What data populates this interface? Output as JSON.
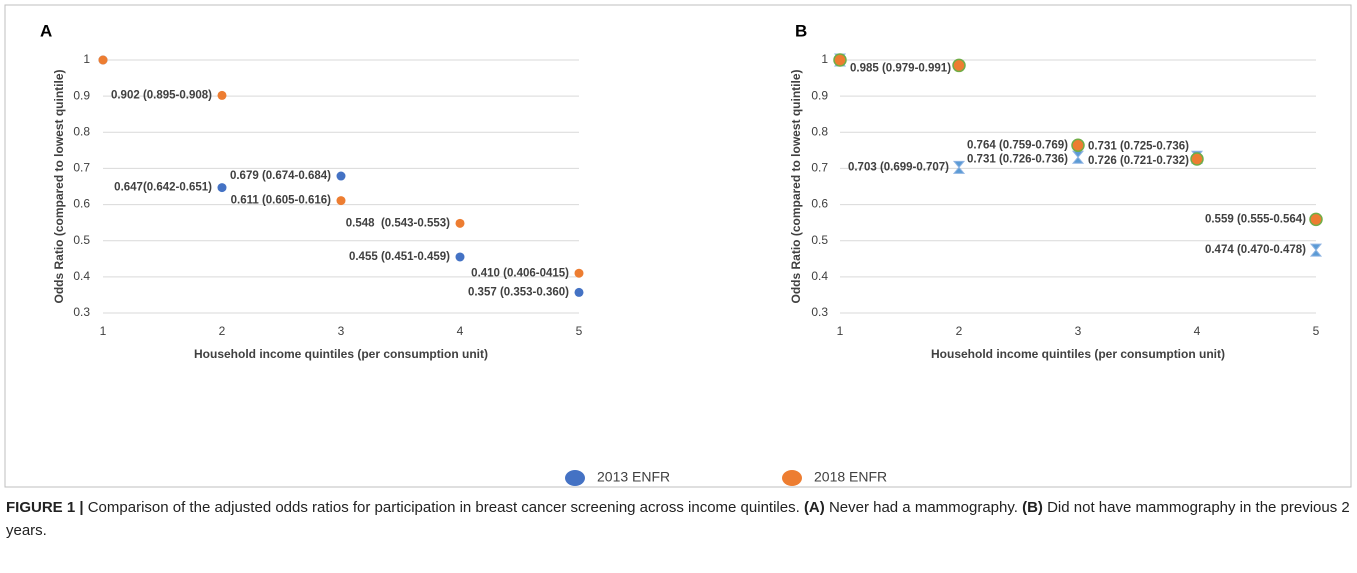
{
  "chart_data": [
    {
      "type": "scatter",
      "panel": "A",
      "x": [
        1,
        2,
        3,
        4,
        5
      ],
      "xlim": [
        1,
        5
      ],
      "xticks": [
        1,
        2,
        3,
        4,
        5
      ],
      "ylim": [
        0.3,
        1
      ],
      "yticks": [
        0.3,
        0.4,
        0.5,
        0.6,
        0.7,
        0.8,
        0.9,
        1
      ],
      "grid": true,
      "xlabel": "Household income quintiles (per consumption unit)",
      "ylabel": "Odds Ratio (compared to lowest quintile)",
      "series": [
        {
          "name": "2013 ENFR",
          "color": "#4472c4",
          "marker": "circle",
          "values": [
            1,
            0.647,
            0.679,
            0.455,
            0.357
          ],
          "value_labels": [
            null,
            "0.647(0.642-0.651)",
            "0.679 (0.674-0.684)",
            "0.455 (0.451-0.459)",
            "0.357 (0.353-0.360)"
          ]
        },
        {
          "name": "2018 ENFR",
          "color": "#ed7d31",
          "marker": "circle",
          "values": [
            1,
            0.902,
            0.611,
            0.548,
            0.41
          ],
          "value_labels": [
            null,
            "0.902 (0.895-0.908)",
            "0.611 (0.605-0.616)",
            "0.548  (0.543-0.553)",
            "0.410 (0.406-0415)"
          ]
        }
      ]
    },
    {
      "type": "scatter",
      "panel": "B",
      "x": [
        1,
        2,
        3,
        4,
        5
      ],
      "xlim": [
        1,
        5
      ],
      "xticks": [
        1,
        2,
        3,
        4,
        5
      ],
      "ylim": [
        0.3,
        1
      ],
      "yticks": [
        0.3,
        0.4,
        0.5,
        0.6,
        0.7,
        0.8,
        0.9,
        1
      ],
      "grid": true,
      "xlabel": "Household income quintiles (per consumption unit)",
      "ylabel": "Odds Ratio (compared to lowest quintile)",
      "series": [
        {
          "color": "#5b9bd5",
          "marker": "hourglass",
          "values": [
            1,
            0.703,
            0.731,
            0.731,
            0.474
          ],
          "value_labels": [
            null,
            "0.703 (0.699-0.707)",
            "0.731 (0.726-0.736)",
            "0.731 (0.725-0.736)",
            "0.474 (0.470-0.478)"
          ]
        },
        {
          "color": "#ed7d31",
          "marker": "circle-outlined",
          "values": [
            1,
            0.985,
            0.764,
            0.726,
            0.559
          ],
          "value_labels": [
            null,
            "0.985 (0.979-0.991)",
            "0.764 (0.759-0.769)",
            "0.726 (0.721-0.732)",
            "0.559 (0.555-0.564)"
          ]
        }
      ]
    }
  ],
  "caption": {
    "label": "FIGURE 1 |",
    "text": "Comparison of the adjusted odds ratios for participation in breast cancer screening across income quintiles.",
    "a_label": "(A)",
    "a_text": "Never had a mammography.",
    "b_label": "(B)",
    "b_text": "Did not have mammography in the previous 2 years."
  }
}
